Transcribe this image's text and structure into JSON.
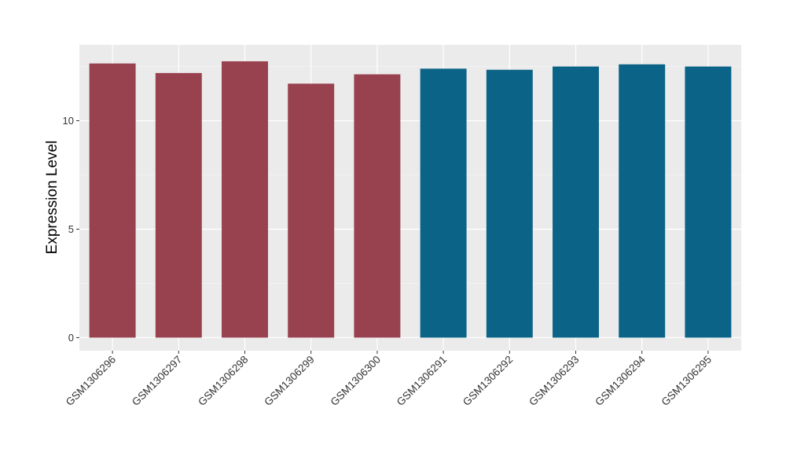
{
  "chart_data": {
    "type": "bar",
    "title": "",
    "xlabel": "",
    "ylabel": "Expression Level",
    "ylim": [
      -0.6,
      13.5
    ],
    "yticks": [
      0,
      5,
      10
    ],
    "grid": true,
    "legend": "none",
    "categories": [
      "GSM1306296",
      "GSM1306297",
      "GSM1306298",
      "GSM1306299",
      "GSM1306300",
      "GSM1306291",
      "GSM1306292",
      "GSM1306293",
      "GSM1306294",
      "GSM1306295"
    ],
    "values": [
      12.64,
      12.2,
      12.74,
      11.71,
      12.14,
      12.4,
      12.35,
      12.5,
      12.6,
      12.5
    ],
    "groups": [
      0,
      0,
      0,
      0,
      0,
      1,
      1,
      1,
      1,
      1
    ],
    "colors": {
      "group_0": "#99424f",
      "group_1": "#0b6488",
      "panel_background": "#ebebeb",
      "grid_major": "#ffffff",
      "grid_minor": "#f4f4f4"
    }
  }
}
